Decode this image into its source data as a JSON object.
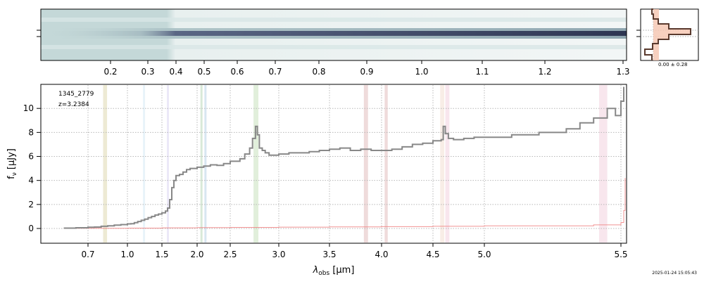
{
  "spectrum2d": {
    "top_ticks": [
      "0.2",
      "0.3",
      "0.4",
      "0.5",
      "0.6",
      "0.7",
      "0.8",
      "0.9",
      "1.0",
      "1.1",
      "1.2",
      "1.3"
    ]
  },
  "profile": {
    "label": "0.00 ± 0.28"
  },
  "chart_data": {
    "type": "line",
    "annotation": [
      "1345_2779",
      "z=3.2384"
    ],
    "xlabel_main": "λ",
    "xlabel_sub": "obs",
    "xlabel_unit": "[μm]",
    "ylabel_main": "f",
    "ylabel_sub": "ν",
    "ylabel_unit": "[μJy]",
    "xscale": "nonlinear (spectral resolution)",
    "xlim": [
      0.52,
      5.54
    ],
    "ylim": [
      -1.2,
      12.0
    ],
    "grid": true,
    "x_ticks": [
      "0.7",
      "1.0",
      "1.5",
      "2.0",
      "2.5",
      "3.0",
      "3.5",
      "4.0",
      "4.5",
      "5.0",
      "5.5"
    ],
    "y_ticks": [
      "0",
      "2",
      "4",
      "6",
      "8",
      "10"
    ],
    "flux": {
      "color": "#888888",
      "x": [
        0.6,
        0.65,
        0.7,
        0.75,
        0.8,
        0.85,
        0.9,
        0.95,
        1.0,
        1.05,
        1.1,
        1.15,
        1.2,
        1.25,
        1.3,
        1.35,
        1.4,
        1.45,
        1.5,
        1.55,
        1.58,
        1.61,
        1.64,
        1.67,
        1.7,
        1.75,
        1.8,
        1.85,
        1.9,
        2.0,
        2.1,
        2.2,
        2.3,
        2.4,
        2.5,
        2.6,
        2.65,
        2.7,
        2.73,
        2.76,
        2.78,
        2.8,
        2.83,
        2.86,
        2.9,
        3.0,
        3.1,
        3.2,
        3.3,
        3.4,
        3.5,
        3.6,
        3.7,
        3.8,
        3.9,
        4.0,
        4.1,
        4.2,
        4.3,
        4.4,
        4.5,
        4.58,
        4.6,
        4.62,
        4.65,
        4.7,
        4.8,
        4.9,
        5.0,
        5.1,
        5.2,
        5.3,
        5.35,
        5.4,
        5.45,
        5.48,
        5.5,
        5.52
      ],
      "y": [
        0.03,
        0.06,
        0.1,
        0.12,
        0.18,
        0.22,
        0.28,
        0.32,
        0.38,
        0.4,
        0.48,
        0.58,
        0.68,
        0.78,
        0.9,
        1.0,
        1.12,
        1.2,
        1.3,
        1.45,
        1.7,
        2.4,
        3.4,
        4.0,
        4.4,
        4.5,
        4.7,
        4.9,
        5.0,
        5.1,
        5.2,
        5.3,
        5.25,
        5.4,
        5.6,
        5.8,
        6.2,
        6.7,
        7.5,
        8.5,
        7.8,
        6.7,
        6.5,
        6.3,
        6.1,
        6.2,
        6.3,
        6.3,
        6.4,
        6.5,
        6.6,
        6.7,
        6.5,
        6.6,
        6.5,
        6.5,
        6.6,
        6.8,
        7.0,
        7.1,
        7.3,
        7.4,
        8.5,
        7.9,
        7.5,
        7.4,
        7.5,
        7.6,
        7.6,
        7.8,
        8.0,
        8.3,
        8.8,
        9.2,
        10.0,
        9.4,
        10.6,
        11.8
      ]
    },
    "error": {
      "color": "#f08080",
      "x": [
        0.6,
        1.0,
        1.5,
        2.0,
        2.5,
        3.0,
        3.5,
        4.0,
        4.5,
        5.0,
        5.4,
        5.5,
        5.52,
        5.53
      ],
      "y": [
        0.01,
        0.03,
        0.05,
        0.07,
        0.09,
        0.11,
        0.13,
        0.15,
        0.18,
        0.22,
        0.3,
        0.5,
        1.5,
        4.2
      ]
    },
    "line_bands": [
      {
        "x0": 0.815,
        "x1": 0.845,
        "color": "#d8d0a0"
      },
      {
        "x0": 1.225,
        "x1": 1.25,
        "color": "#cfe5f2"
      },
      {
        "x0": 1.57,
        "x1": 1.6,
        "color": "#d4cef0"
      },
      {
        "x0": 2.05,
        "x1": 2.08,
        "color": "#a8cfa8"
      },
      {
        "x0": 2.11,
        "x1": 2.14,
        "color": "#a8c8e0"
      },
      {
        "x0": 2.74,
        "x1": 2.79,
        "color": "#bcdcb0"
      },
      {
        "x0": 3.83,
        "x1": 3.87,
        "color": "#dcb0b0"
      },
      {
        "x0": 4.03,
        "x1": 4.06,
        "color": "#dcb0b0"
      },
      {
        "x0": 4.57,
        "x1": 4.61,
        "color": "#f0d8c8"
      },
      {
        "x0": 4.62,
        "x1": 4.66,
        "color": "#f0c8d8"
      },
      {
        "x0": 5.42,
        "x1": 5.45,
        "color": "#f0c8d8"
      }
    ]
  },
  "timestamp": "2025-01-24 15:05:43"
}
